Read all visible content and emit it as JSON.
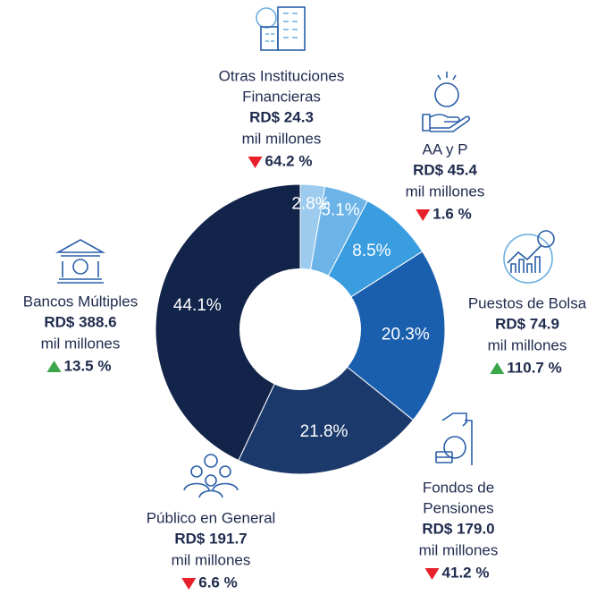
{
  "chart_data": {
    "type": "pie",
    "donut": true,
    "values": [
      2.8,
      5.1,
      8.5,
      20.3,
      21.8,
      44.1
    ],
    "value_labels": [
      "2.8%",
      "5.1%",
      "8.5%",
      "20.3%",
      "21.8%",
      "44.1%"
    ],
    "colors": [
      "#9ccbee",
      "#6cb4e8",
      "#3a9de0",
      "#1a5fad",
      "#1b3a6b",
      "#13244b"
    ],
    "labels": [
      {
        "name": [
          "Otras Instituciones",
          "Financieras"
        ],
        "amount": "RD$ 24.3",
        "unit": "mil millones",
        "change": "64.2 %",
        "trend": "down"
      },
      {
        "name": [
          "AA y P"
        ],
        "amount": "RD$ 45.4",
        "unit": "mil millones",
        "change": "1.6 %",
        "trend": "down"
      },
      {
        "name": [
          "Puestos de Bolsa"
        ],
        "amount": "RD$ 74.9",
        "unit": "mil millones",
        "change": "110.7 %",
        "trend": "up"
      },
      {
        "name": [
          "Fondos de",
          "Pensiones"
        ],
        "amount": "RD$ 179.0",
        "unit": "mil millones",
        "change": "41.2 %",
        "trend": "down"
      },
      {
        "name": [
          "Público en General"
        ],
        "amount": "RD$ 191.7",
        "unit": "mil millones",
        "change": "6.6 %",
        "trend": "down"
      },
      {
        "name": [
          "Bancos Múltiples"
        ],
        "amount": "RD$ 388.6",
        "unit": "mil millones",
        "change": "13.5 %",
        "trend": "up"
      }
    ]
  }
}
